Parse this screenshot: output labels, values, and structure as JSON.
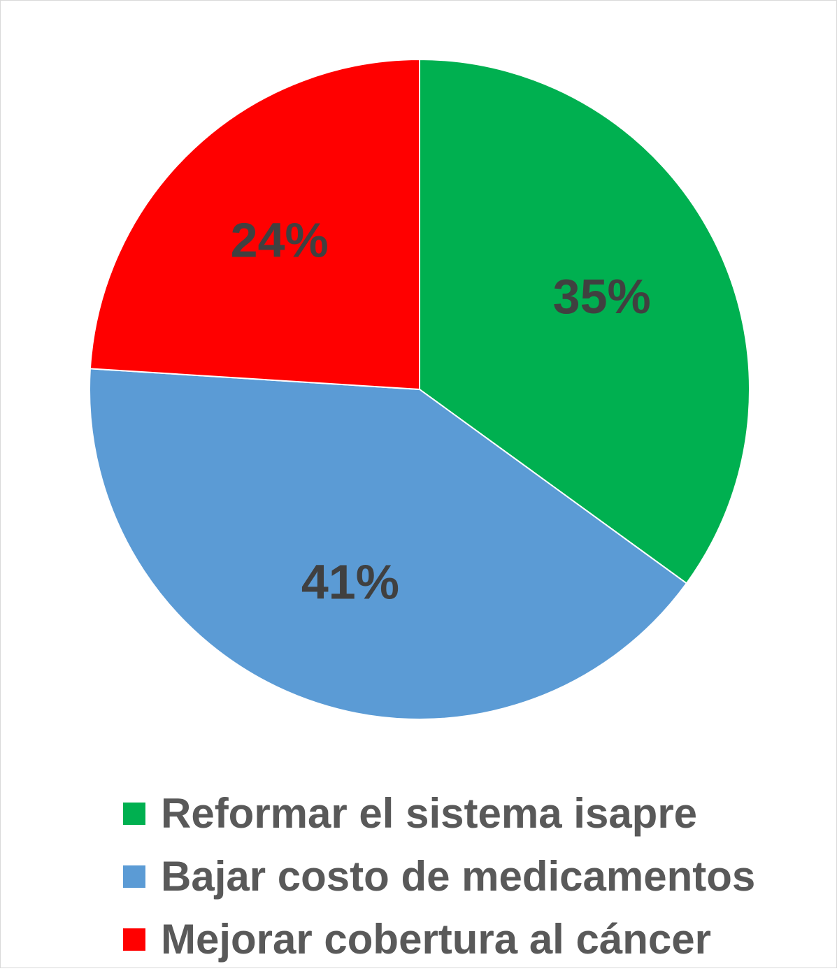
{
  "chart_data": {
    "type": "pie",
    "categories": [
      "Reformar el sistema isapre",
      "Bajar costo de medicamentos",
      "Mejorar cobertura al cáncer"
    ],
    "values": [
      35,
      41,
      24
    ],
    "labels": [
      "35%",
      "41%",
      "24%"
    ],
    "colors": [
      "#00B050",
      "#5B9BD5",
      "#FF0000"
    ],
    "label_color": "#404040",
    "start_angle": "12 o'clock",
    "direction": "clockwise",
    "legend_position": "bottom",
    "legend": [
      {
        "label": "Reformar el sistema isapre",
        "color": "#00B050"
      },
      {
        "label": "Bajar costo de medicamentos",
        "color": "#5B9BD5"
      },
      {
        "label": "Mejorar cobertura al cáncer",
        "color": "#FF0000"
      }
    ]
  }
}
